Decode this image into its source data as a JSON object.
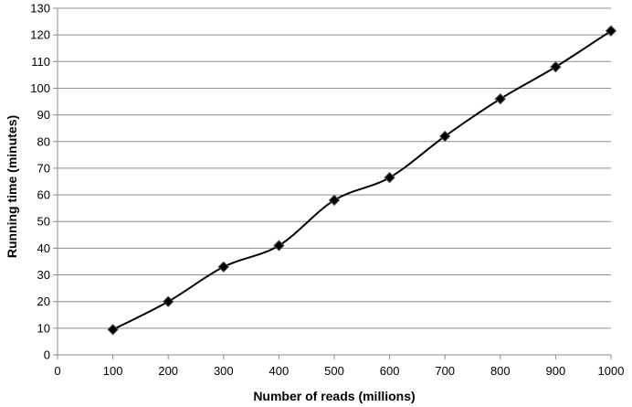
{
  "chart_data": {
    "type": "line",
    "title": "",
    "xlabel": "Number of reads (millions)",
    "ylabel": "Running time (minutes)",
    "xlim": [
      0,
      1000
    ],
    "ylim": [
      0,
      130
    ],
    "x_ticks": [
      0,
      100,
      200,
      300,
      400,
      500,
      600,
      700,
      800,
      900,
      1000
    ],
    "y_ticks": [
      0,
      10,
      20,
      30,
      40,
      50,
      60,
      70,
      80,
      90,
      100,
      110,
      120,
      130
    ],
    "grid": "horizontal",
    "legend": "none",
    "line_color": "#000000",
    "marker": "diamond",
    "series": [
      {
        "x": [
          100,
          200,
          300,
          400,
          500,
          600,
          700,
          800,
          900,
          1000
        ],
        "y": [
          9.5,
          20,
          33,
          41,
          58,
          66.5,
          82,
          96,
          108,
          121.5
        ]
      }
    ]
  }
}
